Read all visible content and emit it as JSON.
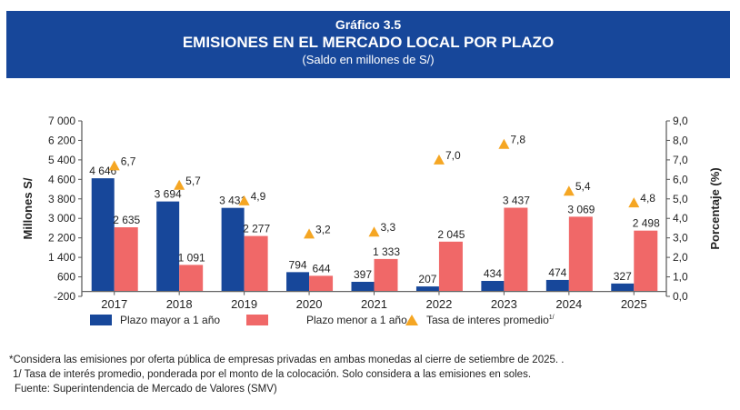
{
  "header": {
    "label": "Gráfico 3.5",
    "title": "EMISIONES EN EL MERCADO LOCAL POR PLAZO",
    "subtitle": "(Saldo en millones de S/)"
  },
  "colors": {
    "banner": "#17479a",
    "mayor": "#17479a",
    "menor": "#f06868",
    "tasa": "#f5a623"
  },
  "chart_data": {
    "type": "bar",
    "title": "EMISIONES EN EL MERCADO LOCAL POR PLAZO",
    "subtitle": "(Saldo en millones de S/)",
    "categories": [
      "2017",
      "2018",
      "2019",
      "2020",
      "2021",
      "2022",
      "2023",
      "2024",
      "2025"
    ],
    "series": [
      {
        "name": "Plazo mayor a 1 año",
        "axis": "left",
        "type": "bar",
        "values": [
          4646,
          3694,
          3431,
          794,
          397,
          207,
          434,
          474,
          327
        ],
        "labels": [
          "4 646",
          "3 694",
          "3 431",
          "794",
          "397",
          "207",
          "434",
          "474",
          "327"
        ]
      },
      {
        "name": "Plazo menor a 1 año",
        "axis": "left",
        "type": "bar",
        "values": [
          2635,
          1091,
          2277,
          644,
          1333,
          2045,
          3437,
          3069,
          2498
        ],
        "labels": [
          "2 635",
          "1 091",
          "2 277",
          "644",
          "1 333",
          "2 045",
          "3 437",
          "3 069",
          "2 498"
        ]
      },
      {
        "name": "Tasa de interes promedio",
        "superscript": "1/",
        "axis": "right",
        "type": "scatter",
        "marker": "triangle",
        "values": [
          6.7,
          5.7,
          4.9,
          3.2,
          3.3,
          7.0,
          7.8,
          5.4,
          4.8
        ],
        "labels": [
          "6,7",
          "5,7",
          "4,9",
          "3,2",
          "3,3",
          "7,0",
          "7,8",
          "5,4",
          "4,8"
        ]
      }
    ],
    "ylabel": "Millones S/",
    "ylim": [
      -200,
      7000
    ],
    "yticks": [
      "7 000",
      "6 200",
      "5 400",
      "4 600",
      "3 800",
      "3 000",
      "2 200",
      "1 400",
      "600",
      "-200"
    ],
    "ytick_values": [
      7000,
      6200,
      5400,
      4600,
      3800,
      3000,
      2200,
      1400,
      600,
      -200
    ],
    "y2label": "Porcentaje (%)",
    "y2lim": [
      0,
      9
    ],
    "y2ticks": [
      "9,0",
      "8,0",
      "7,0",
      "6,0",
      "5,0",
      "4,0",
      "3,0",
      "2,0",
      "1,0",
      "0,0"
    ],
    "y2tick_values": [
      9,
      8,
      7,
      6,
      5,
      4,
      3,
      2,
      1,
      0
    ],
    "grid": false,
    "legend": "bottom"
  },
  "footnotes": [
    "*Considera las emisiones por oferta pública de empresas privadas en ambas monedas al cierre de setiembre de 2025. .",
    "1/ Tasa de interés promedio, ponderada por el monto de la colocación. Solo considera a las emisiones en soles.",
    "Fuente: Superintendencia de Mercado de Valores (SMV)"
  ]
}
